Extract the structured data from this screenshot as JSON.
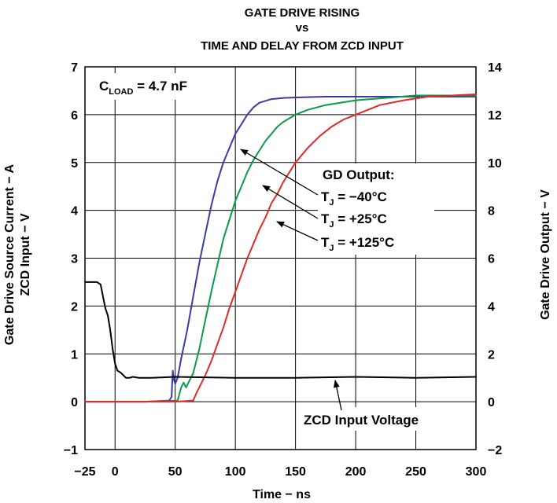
{
  "chart_data": {
    "type": "line",
    "title_lines": [
      "GATE DRIVE RISING",
      "vs",
      "TIME AND DELAY FROM ZCD INPUT"
    ],
    "xlabel": "Time − ns",
    "ylabel_left_line1": "Gate Drive Source Current − A",
    "ylabel_left_line2": "ZCD Input − V",
    "ylabel_right": "Gate Drive Output − V",
    "xlim": [
      -25,
      300
    ],
    "ylim_left": [
      -1,
      7
    ],
    "ylim_right": [
      -2,
      14
    ],
    "x_ticks": [
      "−25",
      "0",
      "50",
      "100",
      "150",
      "200",
      "250",
      "300"
    ],
    "y_left_ticks": [
      "−1",
      "0",
      "1",
      "2",
      "3",
      "4",
      "5",
      "6",
      "7"
    ],
    "y_right_ticks": [
      "−2",
      "0",
      "2",
      "4",
      "6",
      "8",
      "10",
      "12",
      "14"
    ],
    "grid": true,
    "annotations": {
      "cload_main": "C",
      "cload_sub": "LOAD",
      "cload_value": " = 4.7 nF",
      "gd_output": "GD Output:",
      "tj_main": "T",
      "tj_sub": "J",
      "tj_minus40": " = −40°C",
      "tj_plus25": " = +25°C",
      "tj_plus125": " = +125°C",
      "zcd_label": "ZCD Input Voltage"
    },
    "series": [
      {
        "axis": "right",
        "color": "#3a3aa8",
        "x": [
          -25,
          0,
          25,
          45,
          47,
          48,
          49,
          50,
          52,
          55,
          60,
          65,
          70,
          75,
          80,
          85,
          90,
          95,
          100,
          105,
          110,
          115,
          120,
          130,
          140,
          150,
          175,
          200,
          250,
          300
        ],
        "y": [
          0.0,
          0.0,
          0.0,
          0.05,
          0.2,
          1.3,
          0.9,
          0.75,
          1.0,
          1.8,
          3.0,
          4.4,
          5.8,
          7.0,
          8.2,
          9.2,
          10.0,
          10.6,
          11.2,
          11.6,
          12.0,
          12.3,
          12.5,
          12.65,
          12.7,
          12.72,
          12.75,
          12.75,
          12.75,
          12.75
        ]
      },
      {
        "axis": "right",
        "color": "#0a9a4a",
        "x": [
          -25,
          0,
          25,
          52,
          55,
          57,
          59,
          61,
          63,
          65,
          70,
          75,
          80,
          85,
          90,
          95,
          100,
          105,
          110,
          115,
          120,
          125,
          130,
          135,
          140,
          150,
          160,
          175,
          200,
          225,
          250,
          300
        ],
        "y": [
          0.0,
          0.0,
          0.0,
          0.05,
          0.6,
          0.8,
          0.6,
          0.8,
          1.0,
          1.2,
          2.2,
          3.4,
          4.6,
          5.7,
          6.8,
          7.6,
          8.4,
          9.0,
          9.6,
          10.1,
          10.5,
          10.9,
          11.2,
          11.5,
          11.7,
          12.0,
          12.2,
          12.4,
          12.6,
          12.7,
          12.8,
          12.8
        ]
      },
      {
        "axis": "right",
        "color": "#e02a2a",
        "x": [
          -25,
          0,
          25,
          50,
          65,
          68,
          70,
          72,
          75,
          80,
          85,
          90,
          95,
          100,
          105,
          110,
          115,
          120,
          125,
          130,
          135,
          140,
          145,
          150,
          160,
          170,
          180,
          190,
          200,
          220,
          240,
          260,
          280,
          300
        ],
        "y": [
          0.0,
          0.0,
          0.0,
          0.0,
          0.05,
          0.4,
          0.6,
          0.8,
          1.1,
          1.7,
          2.4,
          3.1,
          3.9,
          4.6,
          5.3,
          6.0,
          6.6,
          7.2,
          7.7,
          8.3,
          8.7,
          9.2,
          9.6,
          10.0,
          10.6,
          11.1,
          11.5,
          11.8,
          12.0,
          12.4,
          12.6,
          12.75,
          12.8,
          12.85
        ]
      },
      {
        "axis": "left",
        "color": "#000000",
        "x": [
          -25,
          -15,
          -12,
          -10,
          -8,
          -6,
          -4,
          -2,
          0,
          2,
          4,
          5,
          7,
          9,
          12,
          15,
          20,
          30,
          50,
          100,
          150,
          200,
          250,
          300
        ],
        "y": [
          2.5,
          2.5,
          2.45,
          2.2,
          1.95,
          1.8,
          1.5,
          1.1,
          0.8,
          0.65,
          0.62,
          0.6,
          0.55,
          0.5,
          0.5,
          0.52,
          0.5,
          0.5,
          0.52,
          0.5,
          0.5,
          0.52,
          0.5,
          0.52
        ]
      }
    ]
  }
}
